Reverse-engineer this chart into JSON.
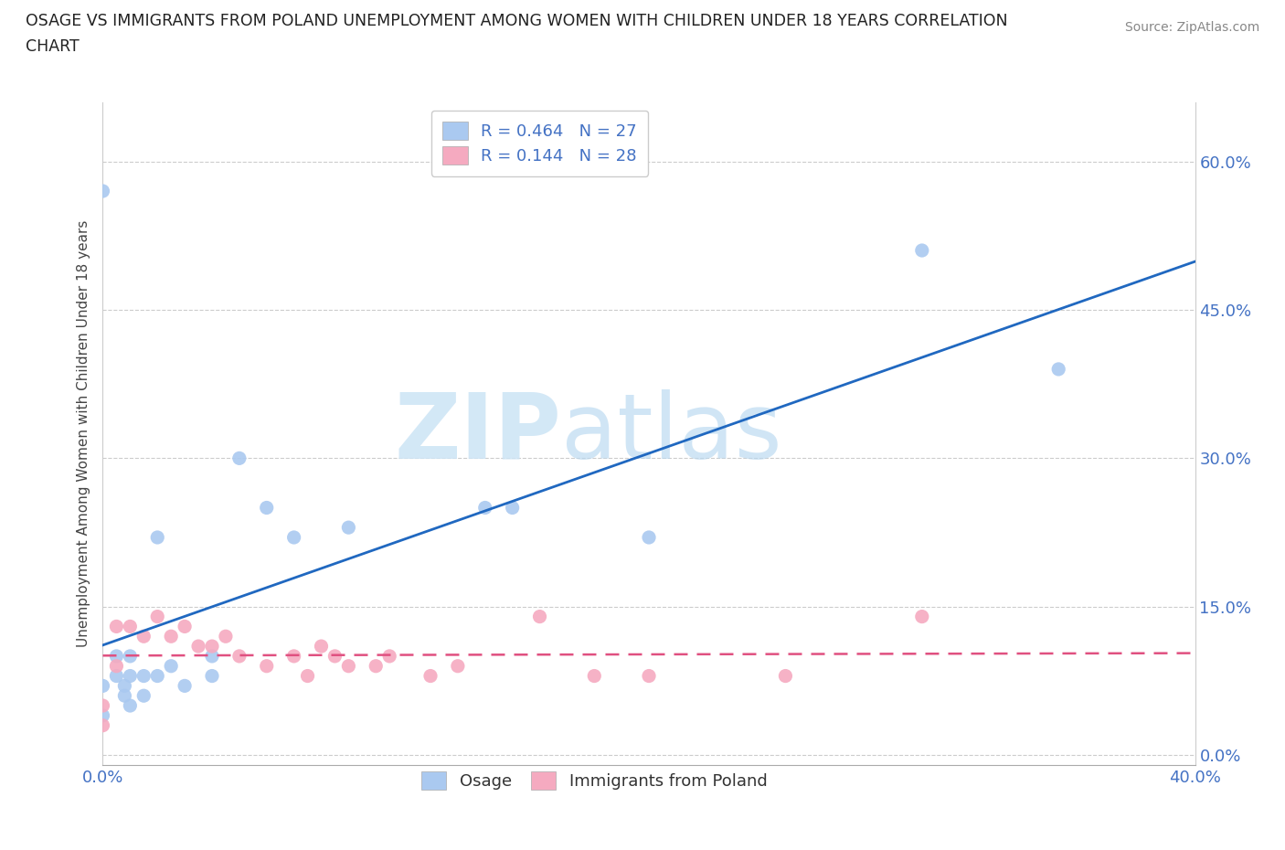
{
  "title_line1": "OSAGE VS IMMIGRANTS FROM POLAND UNEMPLOYMENT AMONG WOMEN WITH CHILDREN UNDER 18 YEARS CORRELATION",
  "title_line2": "CHART",
  "source": "Source: ZipAtlas.com",
  "ylabel": "Unemployment Among Women with Children Under 18 years",
  "xmin": 0.0,
  "xmax": 0.4,
  "ymin": -0.01,
  "ymax": 0.66,
  "yticks": [
    0.0,
    0.15,
    0.3,
    0.45,
    0.6
  ],
  "ytick_labels": [
    "0.0%",
    "15.0%",
    "30.0%",
    "45.0%",
    "60.0%"
  ],
  "xticks": [
    0.0,
    0.1,
    0.2,
    0.3,
    0.4
  ],
  "xtick_labels": [
    "0.0%",
    "",
    "",
    "",
    "40.0%"
  ],
  "osage_R": 0.464,
  "osage_N": 27,
  "poland_R": 0.144,
  "poland_N": 28,
  "osage_color": "#aac9f0",
  "poland_color": "#f5aac0",
  "osage_line_color": "#2068c0",
  "poland_line_color": "#e05080",
  "legend_R_color": "#4472c4",
  "watermark_color": "#cce4f5",
  "osage_x": [
    0.0,
    0.0,
    0.0,
    0.005,
    0.005,
    0.008,
    0.008,
    0.01,
    0.01,
    0.01,
    0.015,
    0.015,
    0.02,
    0.02,
    0.025,
    0.03,
    0.04,
    0.04,
    0.05,
    0.06,
    0.07,
    0.09,
    0.14,
    0.15,
    0.2,
    0.3,
    0.35
  ],
  "osage_y": [
    0.57,
    0.07,
    0.04,
    0.1,
    0.08,
    0.07,
    0.06,
    0.1,
    0.08,
    0.05,
    0.08,
    0.06,
    0.22,
    0.08,
    0.09,
    0.07,
    0.1,
    0.08,
    0.3,
    0.25,
    0.22,
    0.23,
    0.25,
    0.25,
    0.22,
    0.51,
    0.39
  ],
  "poland_x": [
    0.0,
    0.0,
    0.005,
    0.005,
    0.01,
    0.015,
    0.02,
    0.025,
    0.03,
    0.035,
    0.04,
    0.045,
    0.05,
    0.06,
    0.07,
    0.075,
    0.08,
    0.085,
    0.09,
    0.1,
    0.105,
    0.12,
    0.13,
    0.16,
    0.18,
    0.2,
    0.25,
    0.3
  ],
  "poland_y": [
    0.05,
    0.03,
    0.13,
    0.09,
    0.13,
    0.12,
    0.14,
    0.12,
    0.13,
    0.11,
    0.11,
    0.12,
    0.1,
    0.09,
    0.1,
    0.08,
    0.11,
    0.1,
    0.09,
    0.09,
    0.1,
    0.08,
    0.09,
    0.14,
    0.08,
    0.08,
    0.08,
    0.14
  ]
}
